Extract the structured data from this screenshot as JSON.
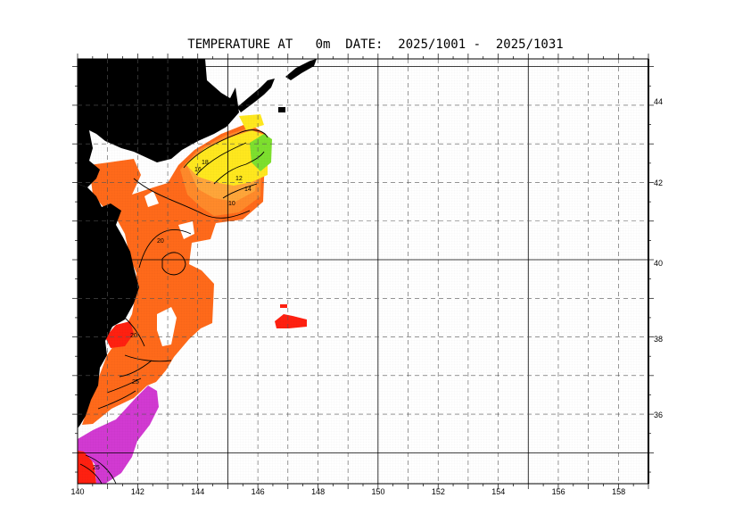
{
  "title": "TEMPERATURE AT   0m  DATE:  2025/1001 -  2025/1031",
  "map": {
    "lon_range": [
      140,
      159
    ],
    "lat_range": [
      34.2,
      45.2
    ],
    "x_ticks": [
      "140",
      "142",
      "144",
      "146",
      "148",
      "150",
      "152",
      "154",
      "156",
      "158"
    ],
    "y_ticks": [
      "36",
      "38",
      "40",
      "42",
      "44"
    ],
    "contour_labels": [
      "18",
      "16",
      "10",
      "12",
      "14",
      "20",
      "20",
      "25",
      "25"
    ],
    "colors": {
      "land": "#000000",
      "warm_orange": "#ff6a1a",
      "mid_orange": "#ff8a2a",
      "light_orange": "#ffa63a",
      "yellow": "#ffe81e",
      "green": "#7de02e",
      "red": "#ff2010",
      "magenta": "#d23ad2",
      "grid": "#555555"
    }
  }
}
